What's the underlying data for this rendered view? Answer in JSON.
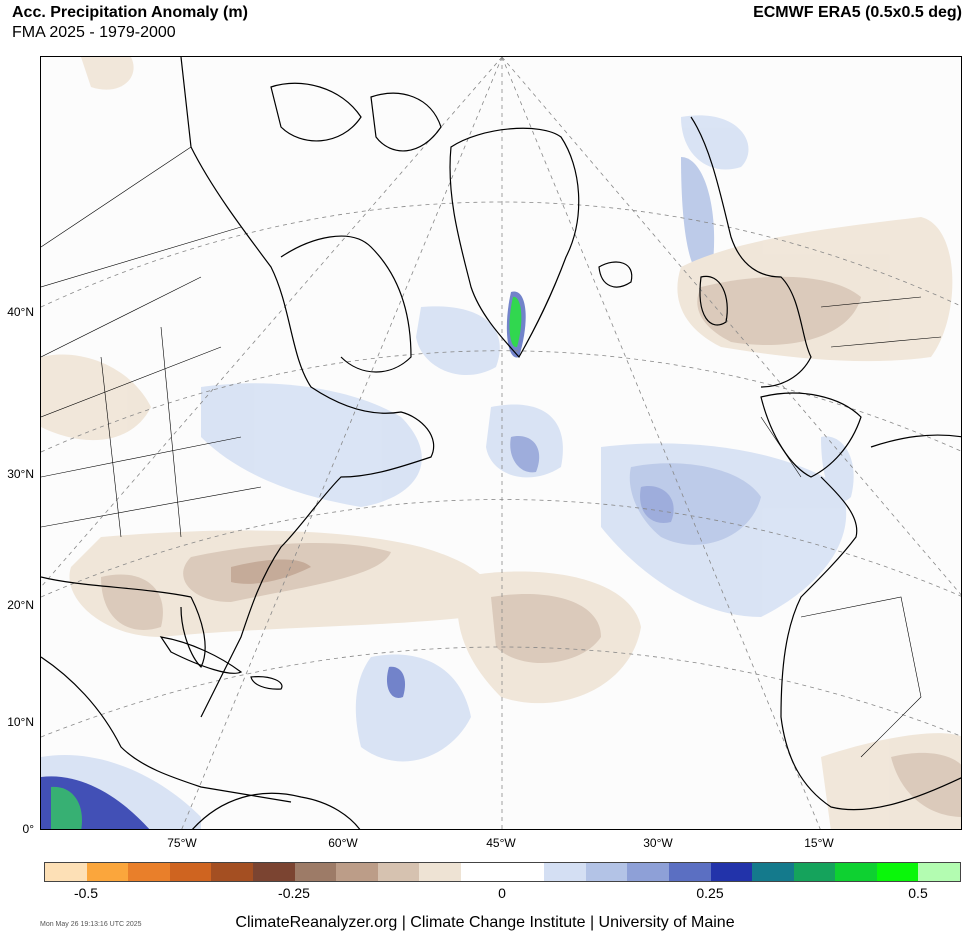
{
  "header": {
    "title": "Acc. Precipitation Anomaly (m)",
    "subtitle": "FMA 2025 - 1979-2000",
    "source": "ECMWF ERA5 (0.5x0.5 deg)"
  },
  "map": {
    "projection": "polar stereographic",
    "lat_labels": [
      "40°N",
      "30°N",
      "20°N",
      "10°N",
      "0°"
    ],
    "lon_labels": [
      "75°W",
      "60°W",
      "45°W",
      "30°W",
      "15°W"
    ]
  },
  "colorbar": {
    "colors": [
      "#fde0b6",
      "#fba63c",
      "#e97f2a",
      "#cf6420",
      "#a44f22",
      "#7b4431",
      "#9d7b67",
      "#bc9d88",
      "#d6c2b0",
      "#eee3d4",
      "#ffffff",
      "#ffffff",
      "#d4dff3",
      "#b3c3e6",
      "#8ea0d7",
      "#5b6fc2",
      "#2233aa",
      "#147a8c",
      "#15a35c",
      "#0ed131",
      "#0af70a",
      "#b3fcb1"
    ],
    "tick_labels": [
      "-0.5",
      "-0.25",
      "0",
      "0.25",
      "0.5"
    ]
  },
  "footer": {
    "timestamp": "Mon May 26 19:13:16 UTC 2025",
    "credit": "ClimateReanalyzer.org | Climate Change Institute | University of Maine"
  }
}
